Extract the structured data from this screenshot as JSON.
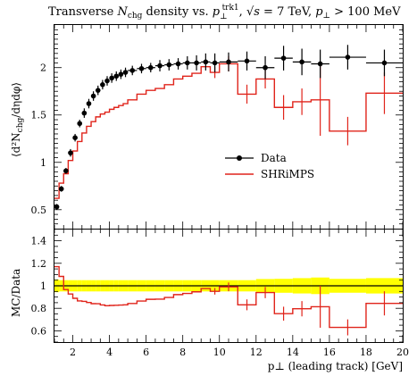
{
  "chart_data": {
    "type": "line",
    "title_parts": {
      "a": "Transverse ",
      "nchg_n": "N",
      "nchg_sub": "chg",
      "b": " density vs. ",
      "p": "p",
      "p_sub": "⊥",
      "p_sup": "trk1",
      "c": ", ",
      "sqrt": "√s",
      "d": " = 7 TeV, ",
      "p2": "p",
      "p2_sub": "⊥",
      "e": " > 100 MeV"
    },
    "ylabel_main": "⟨d²N",
    "ylabel_main_sub": "chg",
    "ylabel_main_tail": "/dηdφ⟩",
    "ylabel_ratio": "MC/Data",
    "xlabel": "p⊥ (leading track) [GeV]",
    "xlim": [
      1,
      20
    ],
    "ylim_main": [
      0.3,
      2.45
    ],
    "ylim_ratio": [
      0.5,
      1.5
    ],
    "x_ticks": [
      "2",
      "4",
      "6",
      "8",
      "10",
      "12",
      "14",
      "16",
      "18",
      "20"
    ],
    "x_tick_values": [
      2,
      4,
      6,
      8,
      10,
      12,
      14,
      16,
      18,
      20
    ],
    "y_ticks_main": [
      "0.5",
      "1",
      "1.5",
      "2"
    ],
    "y_tick_values_main": [
      0.5,
      1,
      1.5,
      2
    ],
    "y_ticks_ratio": [
      "0.6",
      "0.8",
      "1",
      "1.2",
      "1.4"
    ],
    "y_tick_values_ratio": [
      0.6,
      0.8,
      1.0,
      1.2,
      1.4
    ],
    "legend": {
      "placement": "center-right",
      "data_label": "Data",
      "mc_label": "SHRiMPS"
    },
    "colors": {
      "data": "#000000",
      "mc": "#e0241b",
      "band": "#ffff00"
    },
    "bins": [
      {
        "lo": 1.0,
        "hi": 1.25,
        "data": 0.53,
        "derr": 0.03,
        "mc": 0.62
      },
      {
        "lo": 1.25,
        "hi": 1.5,
        "data": 0.72,
        "derr": 0.03,
        "mc": 0.78
      },
      {
        "lo": 1.5,
        "hi": 1.75,
        "data": 0.91,
        "derr": 0.03,
        "mc": 0.88
      },
      {
        "lo": 1.75,
        "hi": 2.0,
        "data": 1.1,
        "derr": 0.04,
        "mc": 1.02
      },
      {
        "lo": 2.0,
        "hi": 2.25,
        "data": 1.26,
        "derr": 0.04,
        "mc": 1.12
      },
      {
        "lo": 2.25,
        "hi": 2.5,
        "data": 1.41,
        "derr": 0.04,
        "mc": 1.22
      },
      {
        "lo": 2.5,
        "hi": 2.75,
        "data": 1.52,
        "derr": 0.05,
        "mc": 1.31
      },
      {
        "lo": 2.75,
        "hi": 3.0,
        "data": 1.62,
        "derr": 0.05,
        "mc": 1.38
      },
      {
        "lo": 3.0,
        "hi": 3.25,
        "data": 1.7,
        "derr": 0.05,
        "mc": 1.43
      },
      {
        "lo": 3.25,
        "hi": 3.5,
        "data": 1.76,
        "derr": 0.05,
        "mc": 1.48
      },
      {
        "lo": 3.5,
        "hi": 3.75,
        "data": 1.82,
        "derr": 0.05,
        "mc": 1.51
      },
      {
        "lo": 3.75,
        "hi": 4.0,
        "data": 1.86,
        "derr": 0.05,
        "mc": 1.53
      },
      {
        "lo": 4.0,
        "hi": 4.25,
        "data": 1.89,
        "derr": 0.05,
        "mc": 1.56
      },
      {
        "lo": 4.25,
        "hi": 4.5,
        "data": 1.91,
        "derr": 0.05,
        "mc": 1.58
      },
      {
        "lo": 4.5,
        "hi": 4.75,
        "data": 1.93,
        "derr": 0.05,
        "mc": 1.6
      },
      {
        "lo": 4.75,
        "hi": 5.0,
        "data": 1.95,
        "derr": 0.05,
        "mc": 1.62
      },
      {
        "lo": 5.0,
        "hi": 5.5,
        "data": 1.97,
        "derr": 0.05,
        "mc": 1.66
      },
      {
        "lo": 5.5,
        "hi": 6.0,
        "data": 1.99,
        "derr": 0.05,
        "mc": 1.72
      },
      {
        "lo": 6.0,
        "hi": 6.5,
        "data": 2.0,
        "derr": 0.05,
        "mc": 1.76
      },
      {
        "lo": 6.5,
        "hi": 7.0,
        "data": 2.02,
        "derr": 0.06,
        "mc": 1.78
      },
      {
        "lo": 7.0,
        "hi": 7.5,
        "data": 2.03,
        "derr": 0.06,
        "mc": 1.82
      },
      {
        "lo": 7.5,
        "hi": 8.0,
        "data": 2.04,
        "derr": 0.06,
        "mc": 1.88
      },
      {
        "lo": 8.0,
        "hi": 8.5,
        "data": 2.05,
        "derr": 0.07,
        "mc": 1.91
      },
      {
        "lo": 8.5,
        "hi": 9.0,
        "data": 2.05,
        "derr": 0.08,
        "mc": 1.94
      },
      {
        "lo": 9.0,
        "hi": 9.5,
        "data": 2.06,
        "derr": 0.09,
        "mc": 2.01
      },
      {
        "lo": 9.5,
        "hi": 10.0,
        "data": 2.05,
        "derr": 0.1,
        "mc": 1.95
      },
      {
        "lo": 10.0,
        "hi": 11.0,
        "data": 2.06,
        "derr": 0.1,
        "mc": 2.04
      },
      {
        "lo": 11.0,
        "hi": 12.0,
        "data": 2.07,
        "derr": 0.1,
        "mc": 1.72
      },
      {
        "lo": 12.0,
        "hi": 13.0,
        "data": 2.0,
        "derr": 0.12,
        "mc": 1.88
      },
      {
        "lo": 13.0,
        "hi": 14.0,
        "data": 2.1,
        "derr": 0.13,
        "mc": 1.58
      },
      {
        "lo": 14.0,
        "hi": 15.0,
        "data": 2.06,
        "derr": 0.14,
        "mc": 1.64
      },
      {
        "lo": 15.0,
        "hi": 16.0,
        "data": 2.04,
        "derr": 0.15,
        "mc": 1.66
      },
      {
        "lo": 16.0,
        "hi": 18.0,
        "data": 2.11,
        "derr": 0.13,
        "mc": 1.33
      },
      {
        "lo": 18.0,
        "hi": 20.0,
        "data": 2.05,
        "derr": 0.14,
        "mc": 1.73
      }
    ],
    "mc_err": [
      0,
      0,
      0,
      0,
      0,
      0,
      0,
      0,
      0,
      0,
      0,
      0,
      0,
      0,
      0,
      0,
      0,
      0,
      0,
      0,
      0,
      0,
      0,
      0,
      0,
      0.06,
      0.08,
      0.1,
      0.1,
      0.13,
      0.14,
      0.38,
      0.15,
      0.22
    ],
    "ratio_band": [
      0.05,
      0.05,
      0.05,
      0.05,
      0.05,
      0.05,
      0.05,
      0.05,
      0.05,
      0.05,
      0.05,
      0.05,
      0.05,
      0.05,
      0.05,
      0.05,
      0.05,
      0.05,
      0.05,
      0.05,
      0.05,
      0.05,
      0.05,
      0.05,
      0.05,
      0.05,
      0.05,
      0.05,
      0.05,
      0.05,
      0.05,
      0.05,
      0.05,
      0.05
    ]
  }
}
